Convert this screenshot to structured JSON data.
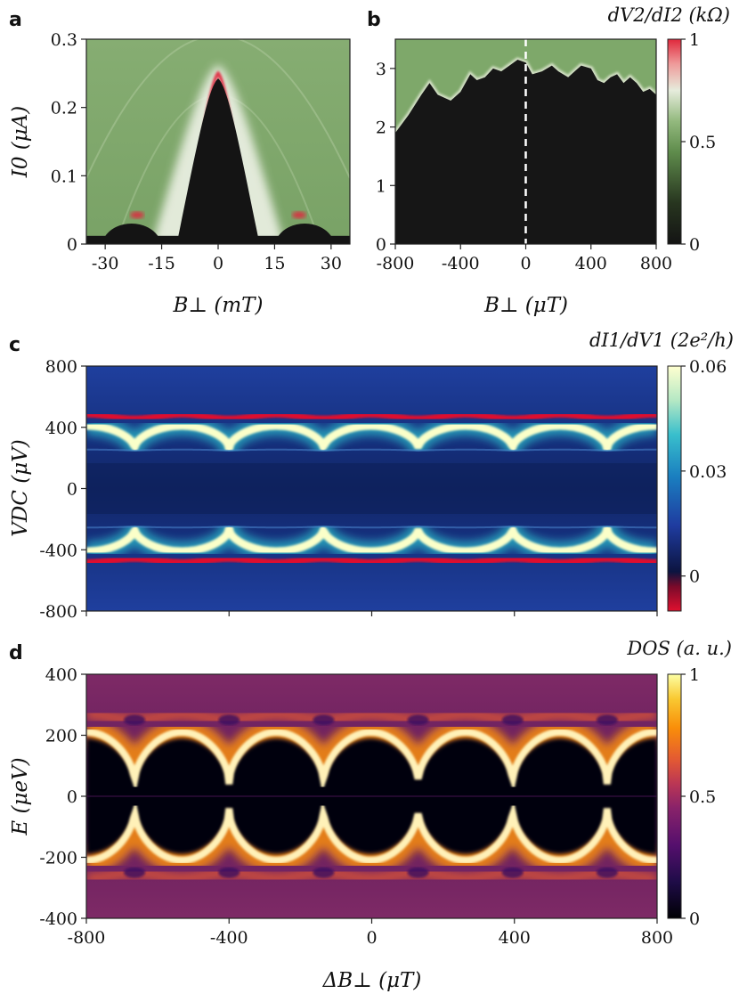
{
  "chart_data": [
    {
      "id": "a",
      "type": "heatmap",
      "panel_label": "a",
      "title": "",
      "xlabel": "B⊥ (mT)",
      "ylabel": "I0 (μA)",
      "xlim": [
        -35,
        35
      ],
      "ylim": [
        0,
        0.3
      ],
      "xticks": [
        -30,
        -15,
        0,
        15,
        30
      ],
      "xtick_labels": [
        "-30",
        "-15",
        "0",
        "15",
        "30"
      ],
      "yticks": [
        0,
        0.1,
        0.2,
        0.3
      ],
      "ytick_labels": [
        "0",
        "0.1",
        "0.2",
        "0.3"
      ],
      "colormap": "black-green-white-red",
      "description_data": {
        "central_lobe_peak": {
          "x": 0,
          "y": 0.25
        },
        "central_lobe_base_halfwidth_mT": 11,
        "side_lobes": [
          {
            "center": -23,
            "peak": 0.05
          },
          {
            "center": 23,
            "peak": 0.05
          }
        ],
        "baseline_supercurrent": 0.012
      }
    },
    {
      "id": "b",
      "type": "heatmap",
      "panel_label": "b",
      "xlabel": "B⊥ (μT)",
      "ylabel": "",
      "xlim": [
        -800,
        800
      ],
      "ylim": [
        0,
        3.5
      ],
      "xticks": [
        -800,
        -400,
        0,
        400,
        800
      ],
      "xtick_labels": [
        "-800",
        "-400",
        "0",
        "400",
        "800"
      ],
      "yticks": [
        0,
        1,
        2,
        3
      ],
      "ytick_labels": [
        "0",
        "1",
        "2",
        "3"
      ],
      "colormap": "black-green-white-red",
      "colorbar": {
        "title": "dV2/dI2 (kΩ)",
        "min": 0,
        "max": 1,
        "ticks": [
          0,
          0.5,
          1
        ],
        "tick_labels": [
          "0",
          "0.5",
          "1"
        ]
      },
      "reference_line_x": 0,
      "switching_current_edge": {
        "x": [
          -800,
          -720,
          -640,
          -590,
          -540,
          -460,
          -400,
          -340,
          -300,
          -250,
          -200,
          -150,
          -100,
          -50,
          0,
          40,
          100,
          160,
          200,
          260,
          300,
          340,
          400,
          440,
          480,
          520,
          560,
          600,
          640,
          680,
          720,
          760,
          800
        ],
        "y": [
          1.9,
          2.2,
          2.55,
          2.75,
          2.55,
          2.45,
          2.6,
          2.9,
          2.8,
          2.85,
          3.0,
          2.95,
          3.05,
          3.15,
          3.1,
          2.9,
          2.95,
          3.05,
          2.95,
          2.85,
          2.95,
          3.05,
          3.0,
          2.8,
          2.75,
          2.85,
          2.9,
          2.75,
          2.85,
          2.75,
          2.6,
          2.65,
          2.55
        ]
      }
    },
    {
      "id": "c",
      "type": "heatmap",
      "panel_label": "c",
      "xlabel": "",
      "ylabel": "VDC (μV)",
      "xlim": [
        -800,
        800
      ],
      "ylim": [
        -800,
        800
      ],
      "yticks": [
        -800,
        -400,
        0,
        400,
        800
      ],
      "ytick_labels": [
        "-800",
        "-400",
        "0",
        "400",
        "800"
      ],
      "xticks": [
        -800,
        -400,
        0,
        400,
        800
      ],
      "colormap": "red-navy-blue-cyan-yellow",
      "colorbar": {
        "title": "dI1/dV1 (2e²/h)",
        "min": -0.01,
        "max": 0.06,
        "ticks": [
          0,
          0.03,
          0.06
        ],
        "tick_labels": [
          "0",
          "0.03",
          "0.06"
        ]
      },
      "period_uT": 265,
      "cusp_positions_uT": [
        -665,
        -400,
        -135,
        130,
        395,
        660
      ],
      "gap_edge_max_uV": 410,
      "gap_edge_min_uV": 260,
      "red_band_uV": 470,
      "weak_line_uV": 210
    },
    {
      "id": "d",
      "type": "heatmap",
      "panel_label": "d",
      "xlabel": "ΔB⊥ (μT)",
      "ylabel": "E (μeV)",
      "xlim": [
        -800,
        800
      ],
      "ylim": [
        -400,
        400
      ],
      "xticks": [
        -800,
        -400,
        0,
        400,
        800
      ],
      "xtick_labels": [
        "-800",
        "-400",
        "0",
        "400",
        "800"
      ],
      "yticks": [
        -400,
        -200,
        0,
        200,
        400
      ],
      "ytick_labels": [
        "-400",
        "-200",
        "0",
        "200",
        "400"
      ],
      "colormap": "inferno",
      "colorbar": {
        "title": "DOS (a. u.)",
        "min": 0,
        "max": 1,
        "ticks": [
          0,
          0.5,
          1
        ],
        "tick_labels": [
          "0",
          "0.5",
          "1"
        ]
      },
      "period_uT": 265,
      "cusp_positions_uT": [
        -665,
        -400,
        -135,
        130,
        395,
        660
      ],
      "gap_edge_max_ueV": 210,
      "gap_edge_min_ueV": 40,
      "outer_band_ueV": 260
    }
  ]
}
